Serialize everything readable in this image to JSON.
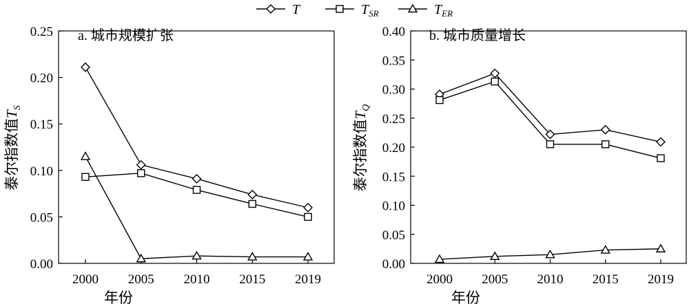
{
  "legend": [
    {
      "marker": "diamond",
      "name": "T",
      "sub": ""
    },
    {
      "marker": "square",
      "name": "T",
      "sub": "SR"
    },
    {
      "marker": "triangle",
      "name": "T",
      "sub": "ER"
    }
  ],
  "chart_data": [
    {
      "type": "line",
      "title": "a. 城市规模扩张",
      "xlabel": "年份",
      "ylabel": "泰尔指数值",
      "ylabel_var": "T",
      "ylabel_sub": "S",
      "categories": [
        "2000",
        "2005",
        "2010",
        "2015",
        "2019"
      ],
      "ylim": [
        0,
        0.25
      ],
      "yticks": [
        "0.00",
        "0.05",
        "0.10",
        "0.15",
        "0.20",
        "0.25"
      ],
      "grid": false,
      "legend_position": "top-center",
      "series": [
        {
          "name": "T",
          "marker": "diamond",
          "values": [
            0.211,
            0.106,
            0.091,
            0.074,
            0.06
          ]
        },
        {
          "name": "T_SR",
          "marker": "square",
          "values": [
            0.093,
            0.097,
            0.079,
            0.064,
            0.05
          ]
        },
        {
          "name": "T_ER",
          "marker": "triangle",
          "values": [
            0.115,
            0.005,
            0.008,
            0.007,
            0.007
          ]
        }
      ]
    },
    {
      "type": "line",
      "title": "b. 城市质量增长",
      "xlabel": "年份",
      "ylabel": "泰尔指数值",
      "ylabel_var": "T",
      "ylabel_sub": "Q",
      "categories": [
        "2000",
        "2005",
        "2010",
        "2015",
        "2019"
      ],
      "ylim": [
        0,
        0.4
      ],
      "yticks": [
        "0.00",
        "0.05",
        "0.10",
        "0.15",
        "0.20",
        "0.25",
        "0.30",
        "0.35",
        "0.40"
      ],
      "grid": false,
      "legend_position": "top-center",
      "series": [
        {
          "name": "T",
          "marker": "diamond",
          "values": [
            0.291,
            0.327,
            0.222,
            0.23,
            0.209
          ]
        },
        {
          "name": "T_SR",
          "marker": "square",
          "values": [
            0.281,
            0.313,
            0.205,
            0.205,
            0.181
          ]
        },
        {
          "name": "T_ER",
          "marker": "triangle",
          "values": [
            0.007,
            0.012,
            0.015,
            0.023,
            0.025
          ]
        }
      ]
    }
  ]
}
